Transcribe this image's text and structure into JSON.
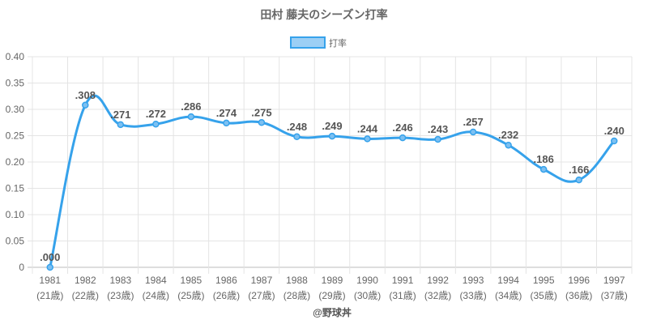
{
  "chart_data": {
    "type": "line",
    "title": "田村 藤夫のシーズン打率",
    "legend": {
      "label": "打率",
      "position": "top"
    },
    "categories": [
      "1981",
      "1982",
      "1983",
      "1984",
      "1985",
      "1986",
      "1987",
      "1988",
      "1989",
      "1990",
      "1991",
      "1992",
      "1993",
      "1994",
      "1995",
      "1996",
      "1997"
    ],
    "ages": [
      "(21歳)",
      "(22歳)",
      "(23歳)",
      "(24歳)",
      "(25歳)",
      "(26歳)",
      "(27歳)",
      "(28歳)",
      "(29歳)",
      "(30歳)",
      "(31歳)",
      "(32歳)",
      "(33歳)",
      "(34歳)",
      "(35歳)",
      "(36歳)",
      "(37歳)"
    ],
    "values": [
      0.0,
      0.308,
      0.271,
      0.272,
      0.286,
      0.274,
      0.275,
      0.248,
      0.249,
      0.244,
      0.246,
      0.243,
      0.257,
      0.232,
      0.186,
      0.166,
      0.24
    ],
    "labels": [
      ".000",
      ".308",
      ".271",
      ".272",
      ".286",
      ".274",
      ".275",
      ".248",
      ".249",
      ".244",
      ".246",
      ".243",
      ".257",
      ".232",
      ".186",
      ".166",
      ".240"
    ],
    "ylim": [
      0,
      0.4
    ],
    "yticks": [
      "0",
      "0.05",
      "0.10",
      "0.15",
      "0.20",
      "0.25",
      "0.30",
      "0.35",
      "0.40"
    ],
    "grid": true,
    "color": "#36a2eb"
  },
  "credit": "@野球丼"
}
